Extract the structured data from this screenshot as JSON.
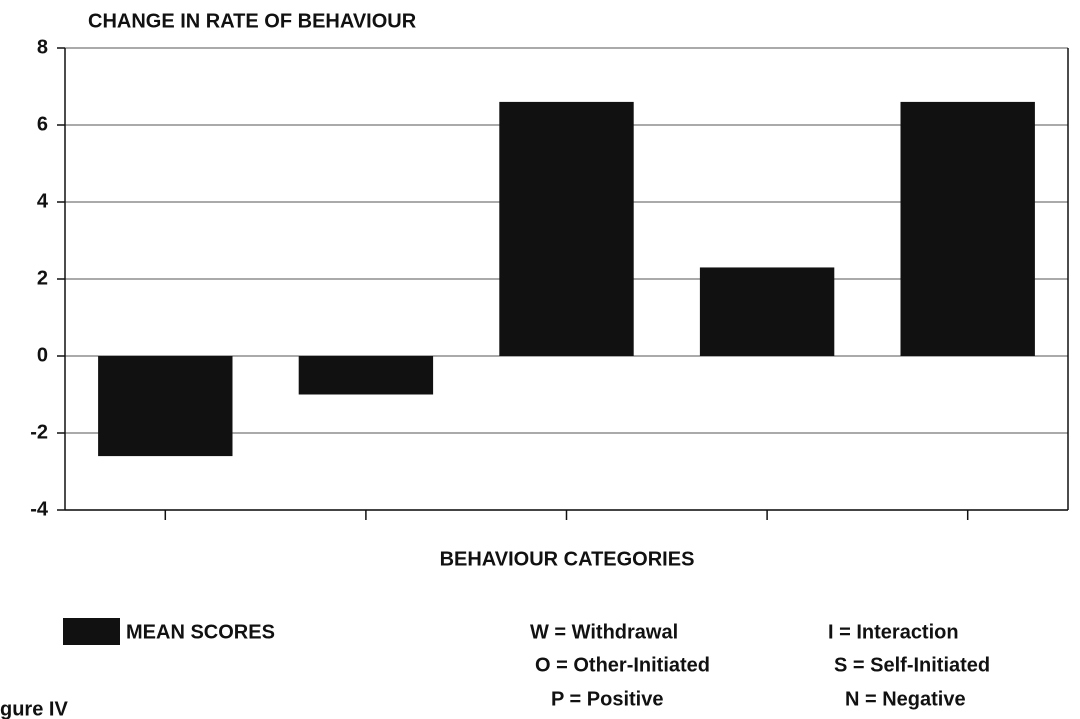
{
  "chart_data": {
    "type": "bar",
    "title": "CHANGE IN RATE OF BEHAVIOUR",
    "x_label": "BEHAVIOUR CATEGORIES",
    "categories": [
      null,
      null,
      null,
      null,
      null
    ],
    "series": [
      {
        "name": "MEAN SCORES",
        "color": "#111111",
        "values": [
          -2.6,
          -1.0,
          6.6,
          2.3,
          6.6
        ]
      }
    ],
    "ylim": [
      -4,
      8
    ],
    "yticks": [
      -4,
      -2,
      0,
      2,
      4,
      6,
      8
    ],
    "grid": true,
    "key": [
      "W = Withdrawal",
      "I = Interaction",
      "O = Other-Initiated",
      "S = Self-Initiated",
      "P = Positive",
      "N = Negative"
    ],
    "caption": "gure IV"
  }
}
